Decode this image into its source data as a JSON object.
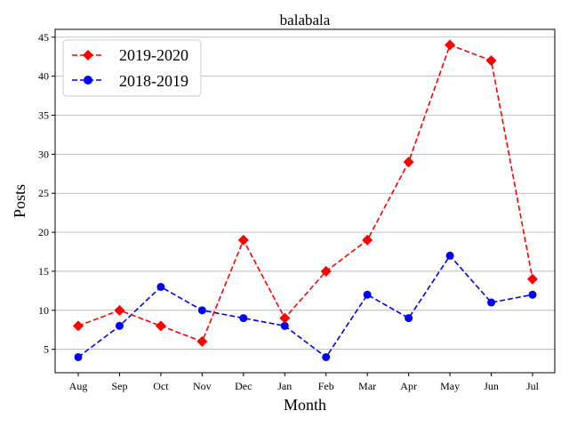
{
  "chart_data": {
    "type": "line",
    "title": "balabala",
    "xlabel": "Month",
    "ylabel": "Posts",
    "categories": [
      "Aug",
      "Sep",
      "Oct",
      "Nov",
      "Dec",
      "Jan",
      "Feb",
      "Mar",
      "Apr",
      "May",
      "Jun",
      "Jul"
    ],
    "ylim": [
      2,
      46
    ],
    "yticks": [
      5,
      10,
      15,
      20,
      25,
      30,
      35,
      40,
      45
    ],
    "grid": "horizontal",
    "legend_position": "top-left",
    "series": [
      {
        "name": "2019-2020",
        "color": "#ff0000",
        "marker": "diamond",
        "linestyle": "dashed",
        "values": [
          8,
          10,
          8,
          6,
          19,
          9,
          15,
          19,
          29,
          44,
          42,
          14
        ]
      },
      {
        "name": "2018-2019",
        "color": "#0000ff",
        "marker": "circle",
        "linestyle": "dashed",
        "values": [
          4,
          8,
          13,
          10,
          9,
          8,
          4,
          12,
          9,
          17,
          11,
          12
        ]
      }
    ]
  }
}
